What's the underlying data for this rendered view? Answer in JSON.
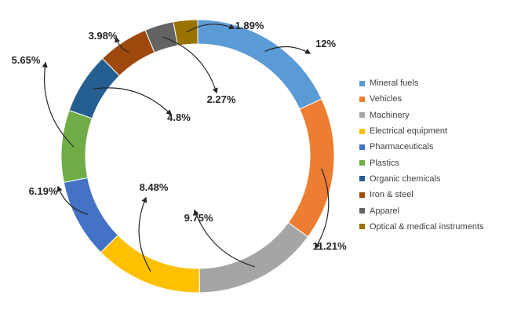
{
  "chart_data": {
    "type": "pie",
    "donut": true,
    "title": "",
    "legend_position": "right",
    "start_angle_deg": 0,
    "direction": "clockwise",
    "categories": [
      "Mineral fuels",
      "Vehicles",
      "Machinery",
      "Electrical equipment",
      "Pharmaceuticals",
      "Plastics",
      "Organic chemicals",
      "Iron & steel",
      "Apparel",
      "Optical & medical instruments"
    ],
    "values": [
      12,
      11.21,
      9.75,
      8.48,
      6.19,
      5.65,
      4.8,
      3.98,
      2.27,
      1.89
    ],
    "value_labels": [
      "12%",
      "11.21%",
      "9.75%",
      "8.48%",
      "6.19%",
      "5.65%",
      "4.8%",
      "3.98%",
      "2.27%",
      "1.89%"
    ],
    "colors": [
      "#5b9bd5",
      "#ed7d31",
      "#a5a5a5",
      "#ffc000",
      "#4472c4",
      "#70ad47",
      "#255e91",
      "#9e480e",
      "#636363",
      "#997300"
    ]
  }
}
